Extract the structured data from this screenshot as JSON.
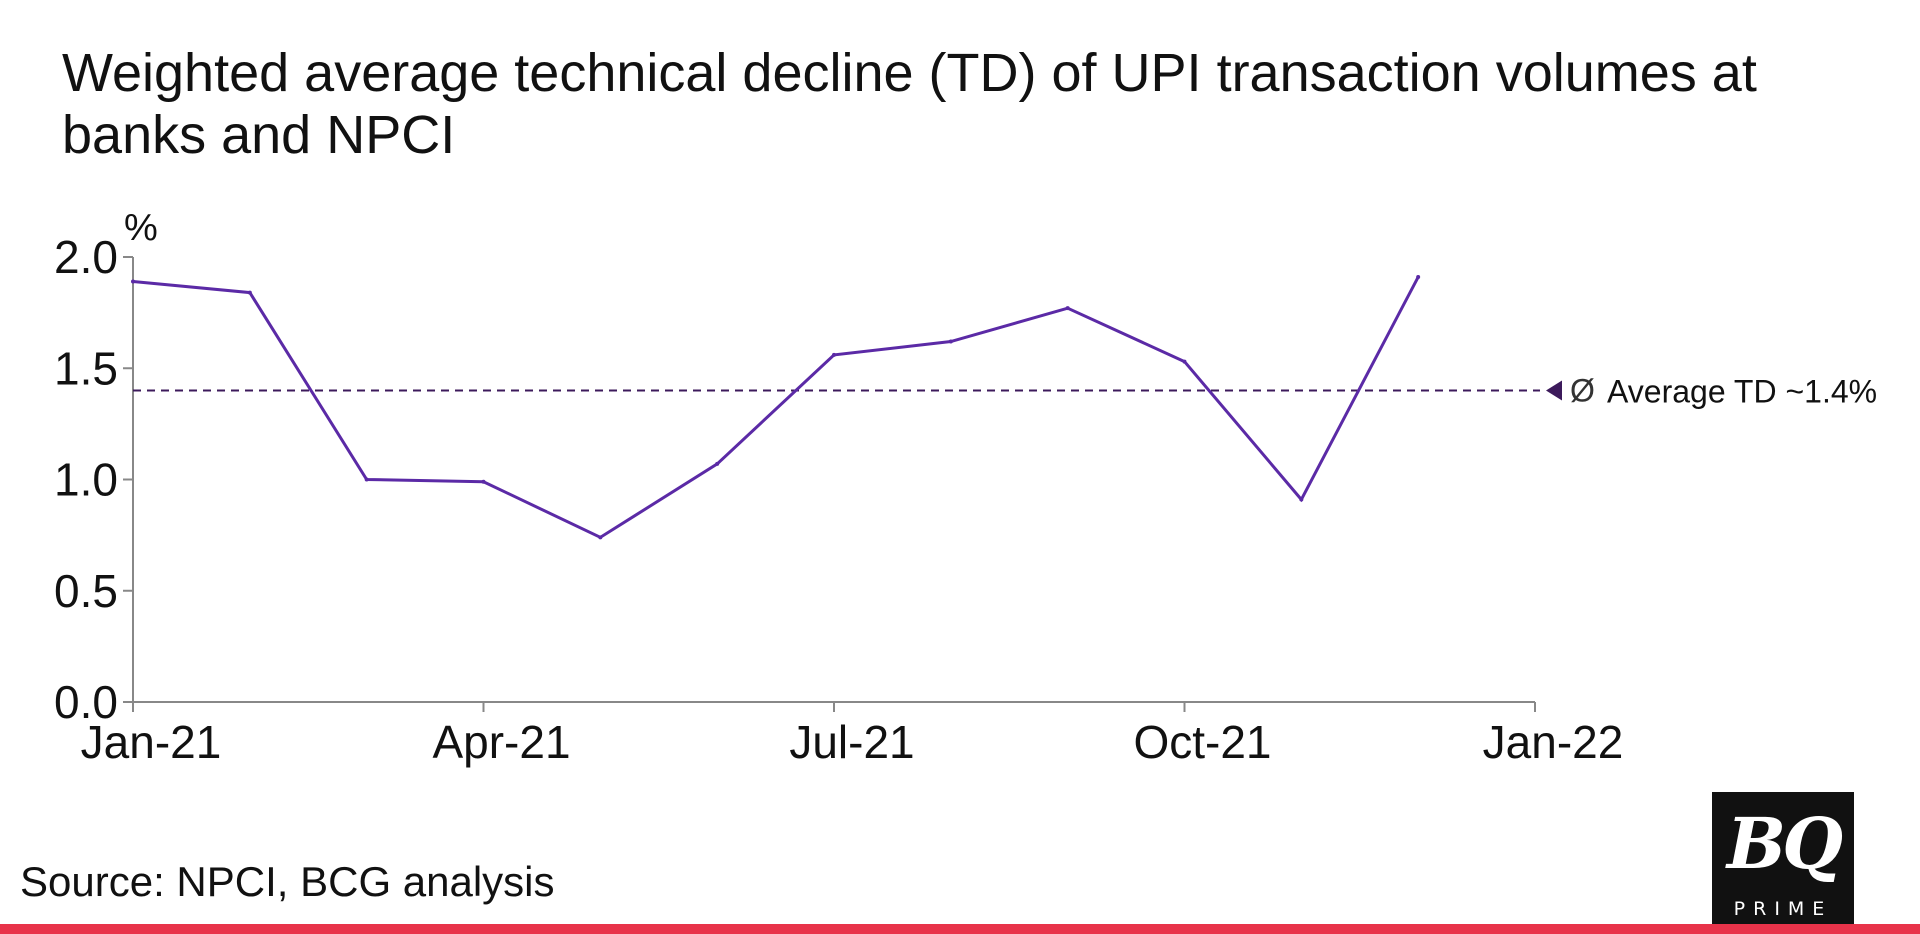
{
  "title": "Weighted average technical decline (TD) of UPI transaction volumes at banks and NPCI",
  "source": "Source: NPCI, BCG analysis",
  "logo": {
    "mark": "BQ",
    "sub": "PRIME"
  },
  "colors": {
    "line": "#5b2aa6",
    "average": "#3c1a5b",
    "axis": "#888888",
    "footer_bar": "#e8334a"
  },
  "chart_data": {
    "type": "line",
    "title": "Weighted average technical decline (TD) of UPI transaction volumes at banks and NPCI",
    "xlabel": "",
    "ylabel": "%",
    "ylim": [
      0,
      2.0
    ],
    "yticks": [
      "0.0",
      "0.5",
      "1.0",
      "1.5",
      "2.0"
    ],
    "xticks": [
      "Jan-21",
      "Apr-21",
      "Jul-21",
      "Oct-21",
      "Jan-22"
    ],
    "grid": false,
    "series": [
      {
        "name": "Weighted average TD",
        "x": [
          "Jan-21",
          "Feb-21",
          "Mar-21",
          "Apr-21",
          "May-21",
          "Jun-21",
          "Jul-21",
          "Aug-21",
          "Sep-21",
          "Oct-21",
          "Nov-21",
          "Dec-21"
        ],
        "values": [
          1.89,
          1.84,
          1.0,
          0.99,
          0.74,
          1.07,
          1.56,
          1.62,
          1.77,
          1.53,
          0.91,
          1.91
        ]
      }
    ],
    "average": {
      "value": 1.4,
      "label": "Average TD ~1.4%",
      "symbol": "Ø"
    }
  }
}
